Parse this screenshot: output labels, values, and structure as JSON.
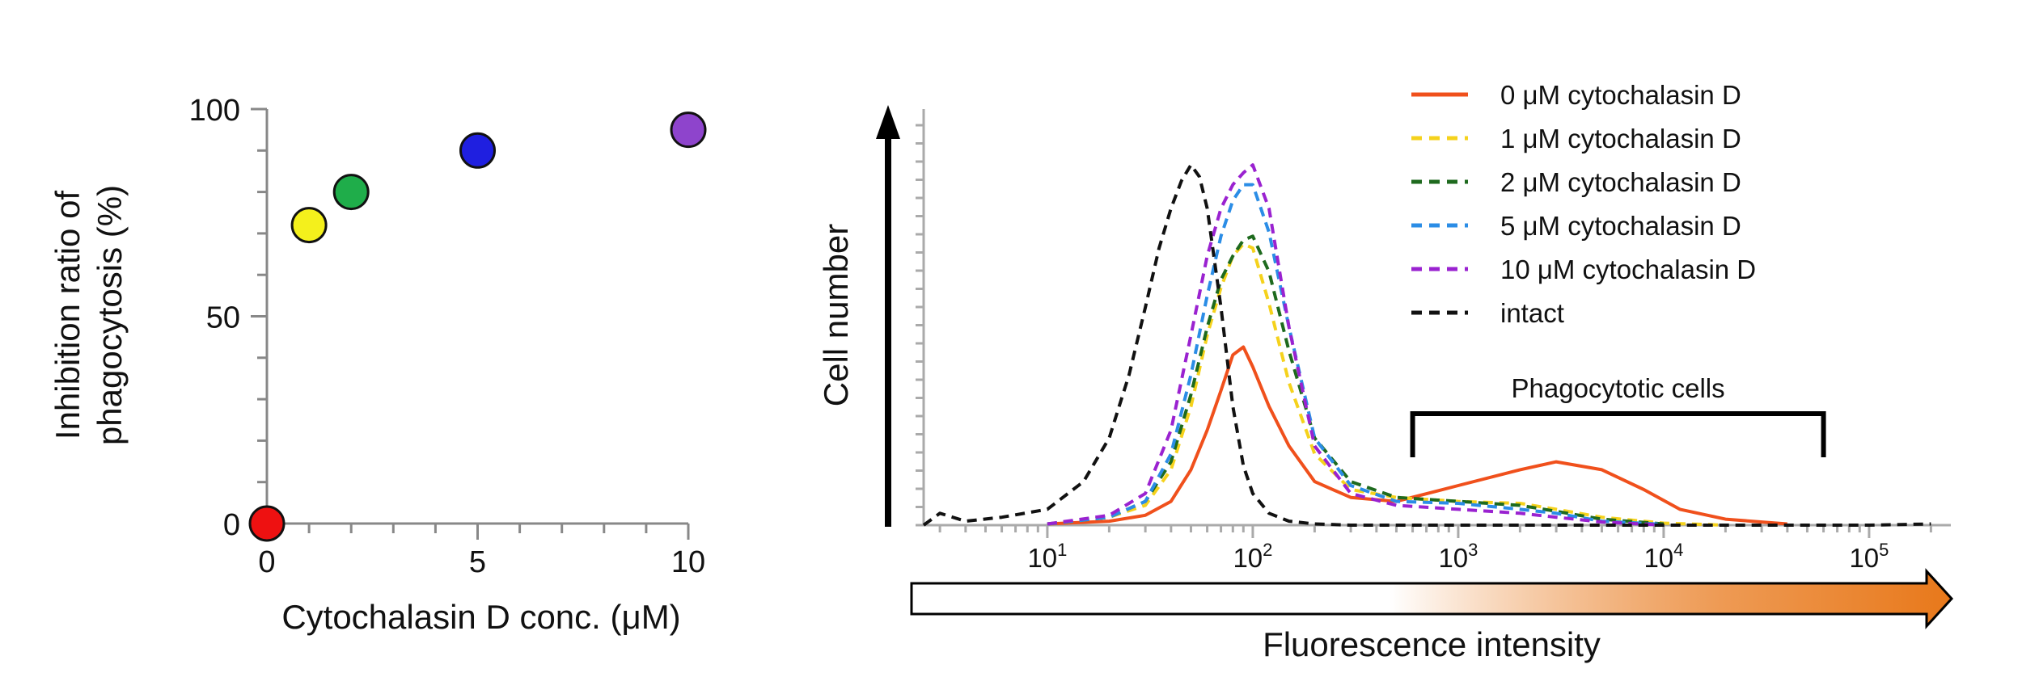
{
  "chart_data": [
    {
      "type": "scatter",
      "xlabel": "Cytochalasin D conc. (μM)",
      "ylabel_lines": [
        "Inhibition ratio of",
        "phagocytosis (%)"
      ],
      "xlim": [
        0,
        10
      ],
      "ylim": [
        0,
        100
      ],
      "x_ticks": [
        "0",
        "5",
        "10"
      ],
      "y_ticks": [
        "0",
        "50",
        "100"
      ],
      "points": [
        {
          "x": 0,
          "y": 0,
          "color": "#ee1111"
        },
        {
          "x": 1,
          "y": 72,
          "color": "#f4f01c"
        },
        {
          "x": 2,
          "y": 80,
          "color": "#1fad4a"
        },
        {
          "x": 5,
          "y": 90,
          "color": "#1f1fe0"
        },
        {
          "x": 10,
          "y": 95,
          "color": "#8e44cc"
        }
      ]
    },
    {
      "type": "line",
      "ylabel": "Cell number",
      "xlabel": "Fluorescence intensity",
      "x_scale": "log",
      "xlim": [
        2.5,
        250000
      ],
      "x_ticks": [
        {
          "base": "10",
          "exp": "1",
          "value": 10
        },
        {
          "base": "10",
          "exp": "2",
          "value": 100
        },
        {
          "base": "10",
          "exp": "3",
          "value": 1000
        },
        {
          "base": "10",
          "exp": "4",
          "value": 10000
        },
        {
          "base": "10",
          "exp": "5",
          "value": 100000
        }
      ],
      "annotation": {
        "label": "Phagocytotic cells",
        "x_range": [
          600,
          60000
        ]
      },
      "gradient_color": "#e8781a",
      "series": [
        {
          "name": "0 μM cytochalasin D",
          "color": "#f0501c",
          "dash": "solid",
          "points": [
            [
              10,
              0.3
            ],
            [
              20,
              1
            ],
            [
              30,
              2.5
            ],
            [
              40,
              6
            ],
            [
              50,
              14
            ],
            [
              60,
              24
            ],
            [
              70,
              34
            ],
            [
              80,
              43
            ],
            [
              90,
              45
            ],
            [
              100,
              40
            ],
            [
              120,
              30
            ],
            [
              150,
              20
            ],
            [
              200,
              11
            ],
            [
              300,
              7
            ],
            [
              500,
              6
            ],
            [
              1000,
              10
            ],
            [
              2000,
              14
            ],
            [
              3000,
              16
            ],
            [
              5000,
              14
            ],
            [
              8000,
              9
            ],
            [
              12000,
              4
            ],
            [
              20000,
              1.5
            ],
            [
              40000,
              0.3
            ]
          ]
        },
        {
          "name": "1 μM cytochalasin D",
          "color": "#f5d21c",
          "dash": "dashed",
          "points": [
            [
              10,
              0.3
            ],
            [
              20,
              2
            ],
            [
              30,
              5
            ],
            [
              40,
              14
            ],
            [
              50,
              30
            ],
            [
              60,
              48
            ],
            [
              70,
              60
            ],
            [
              80,
              68
            ],
            [
              90,
              71
            ],
            [
              100,
              70
            ],
            [
              120,
              56
            ],
            [
              150,
              36
            ],
            [
              200,
              18
            ],
            [
              300,
              9
            ],
            [
              500,
              7
            ],
            [
              1000,
              6
            ],
            [
              2000,
              5.5
            ],
            [
              3000,
              4
            ],
            [
              5000,
              2
            ],
            [
              10000,
              0.5
            ],
            [
              20000,
              0
            ]
          ]
        },
        {
          "name": "2 μM cytochalasin D",
          "color": "#1e6a1e",
          "dash": "dashed",
          "points": [
            [
              10,
              0.3
            ],
            [
              20,
              2
            ],
            [
              30,
              6
            ],
            [
              40,
              16
            ],
            [
              50,
              33
            ],
            [
              60,
              50
            ],
            [
              70,
              62
            ],
            [
              80,
              68
            ],
            [
              90,
              72
            ],
            [
              100,
              73
            ],
            [
              120,
              64
            ],
            [
              150,
              44
            ],
            [
              200,
              22
            ],
            [
              300,
              11
            ],
            [
              500,
              7
            ],
            [
              1000,
              6
            ],
            [
              2000,
              5
            ],
            [
              3000,
              3.5
            ],
            [
              5000,
              1.5
            ],
            [
              10000,
              0.3
            ]
          ]
        },
        {
          "name": "5 μM cytochalasin D",
          "color": "#2b8de6",
          "dash": "dashed",
          "points": [
            [
              10,
              0.3
            ],
            [
              20,
              2
            ],
            [
              30,
              6
            ],
            [
              40,
              18
            ],
            [
              50,
              38
            ],
            [
              60,
              58
            ],
            [
              70,
              73
            ],
            [
              80,
              82
            ],
            [
              90,
              86
            ],
            [
              100,
              86
            ],
            [
              120,
              74
            ],
            [
              150,
              50
            ],
            [
              200,
              22
            ],
            [
              300,
              10
            ],
            [
              500,
              6
            ],
            [
              1000,
              5.5
            ],
            [
              2000,
              4
            ],
            [
              3000,
              3
            ],
            [
              5000,
              1
            ],
            [
              10000,
              0.2
            ]
          ]
        },
        {
          "name": "10 μM cytochalasin D",
          "color": "#9a22d0",
          "dash": "dashed",
          "points": [
            [
              10,
              0.3
            ],
            [
              20,
              2.5
            ],
            [
              30,
              8
            ],
            [
              40,
              24
            ],
            [
              50,
              48
            ],
            [
              60,
              68
            ],
            [
              70,
              80
            ],
            [
              80,
              86
            ],
            [
              90,
              89
            ],
            [
              100,
              91
            ],
            [
              120,
              80
            ],
            [
              150,
              50
            ],
            [
              200,
              20
            ],
            [
              300,
              8
            ],
            [
              500,
              5
            ],
            [
              1000,
              4
            ],
            [
              2000,
              3
            ],
            [
              3000,
              2
            ],
            [
              5000,
              0.8
            ],
            [
              10000,
              0
            ]
          ]
        },
        {
          "name": "intact",
          "color": "#111111",
          "dash": "dashed",
          "points": [
            [
              2.5,
              0
            ],
            [
              3,
              3
            ],
            [
              4,
              1
            ],
            [
              6,
              2
            ],
            [
              10,
              4
            ],
            [
              15,
              11
            ],
            [
              20,
              22
            ],
            [
              25,
              38
            ],
            [
              30,
              55
            ],
            [
              35,
              70
            ],
            [
              40,
              80
            ],
            [
              45,
              87
            ],
            [
              50,
              91
            ],
            [
              55,
              88
            ],
            [
              60,
              80
            ],
            [
              70,
              55
            ],
            [
              80,
              30
            ],
            [
              90,
              15
            ],
            [
              100,
              8
            ],
            [
              120,
              3
            ],
            [
              150,
              1
            ],
            [
              200,
              0.3
            ],
            [
              300,
              0
            ],
            [
              100000,
              0
            ],
            [
              200000,
              0.3
            ]
          ]
        }
      ]
    }
  ]
}
